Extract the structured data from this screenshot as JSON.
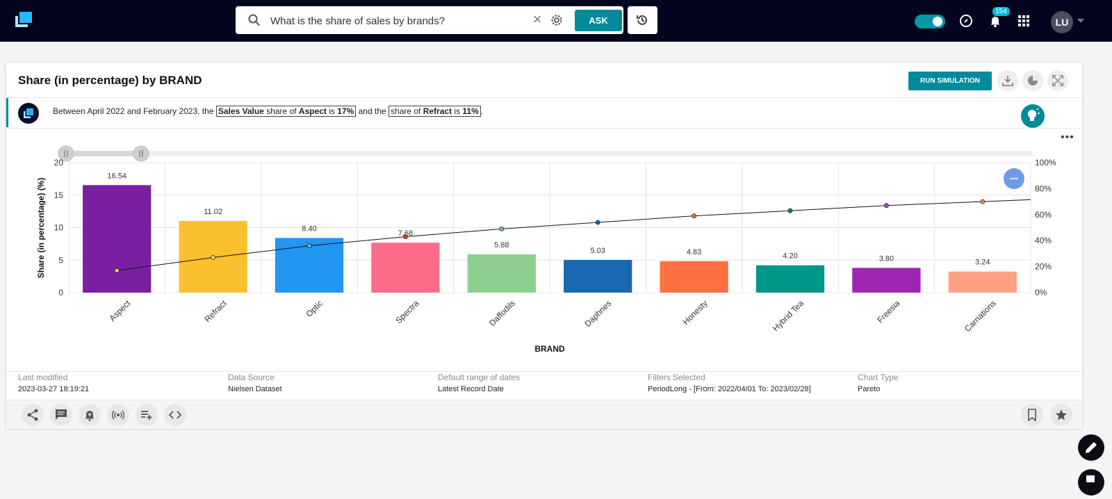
{
  "search": {
    "query": "What is the share of sales by brands?",
    "ask_label": "ASK",
    "clear_glyph": "×"
  },
  "header": {
    "notification_count": "154",
    "avatar_initials": "LU"
  },
  "card": {
    "title": "Share (in percentage) by BRAND",
    "run_simulation_label": "RUN SIMULATION",
    "insight": {
      "p1": "Between April 2022 and February 2023, the ",
      "b1_bold": "Sales Value",
      "b1_rest": " share of ",
      "b1_bold2": "Aspect",
      "b1_is": " is ",
      "b1_val": "17%",
      "p2": " and the ",
      "b2_rest": "share of ",
      "b2_bold": "Refract",
      "b2_is": " is ",
      "b2_val": "11%",
      "p3": "."
    },
    "more_glyph": "•••"
  },
  "chart_data": {
    "type": "bar",
    "title": "",
    "xlabel": "BRAND",
    "ylabel": "Share (in percentage) (%)",
    "ylim": [
      0,
      20
    ],
    "yticks": [
      "0",
      "5",
      "10",
      "15",
      "20"
    ],
    "y2lim": [
      0,
      100
    ],
    "y2ticks": [
      "0%",
      "20%",
      "40%",
      "60%",
      "80%",
      "100%"
    ],
    "categories": [
      "Aspect",
      "Refract",
      "Optic",
      "Spectra",
      "Daffodils",
      "Daphnes",
      "Honesty",
      "Hybrid Tea",
      "Freesia",
      "Carnations"
    ],
    "values": [
      16.54,
      11.02,
      8.4,
      7.68,
      5.88,
      5.03,
      4.83,
      4.2,
      3.8,
      3.24
    ],
    "value_labels": [
      "16.54",
      "11.02",
      "8.40",
      "7.68",
      "5.88",
      "5.03",
      "4.83",
      "4.20",
      "3.80",
      "3.24"
    ],
    "cumulative_pct": [
      17,
      27,
      36,
      43,
      49,
      54,
      59,
      63,
      67,
      70
    ],
    "colors": [
      "#7b1fa2",
      "#fbc02d",
      "#2196f3",
      "#ff6b8b",
      "#8ccf8e",
      "#1a68b0",
      "#ff7043",
      "#009688",
      "#9c27b0",
      "#ffa284"
    ],
    "line_marker_colors": [
      "#ffd54f",
      "#ffd54f",
      "#64b5f6",
      "#e53935",
      "#81c784",
      "#1565c0",
      "#ff7043",
      "#00897b",
      "#ab47bc",
      "#ff8a65"
    ],
    "grid": true
  },
  "meta": [
    {
      "label": "Last modified",
      "value": "2023-03-27 18:19:21"
    },
    {
      "label": "Data Source",
      "value": "Nielsen Dataset"
    },
    {
      "label": "Default range of dates",
      "value": "Latest Record Date"
    },
    {
      "label": "Filters Selected",
      "value": "PeriodLong - [From: 2022/04/01 To: 2023/02/28]"
    },
    {
      "label": "Chart Type",
      "value": "Pareto"
    }
  ],
  "colors": {
    "topbar": "#03051e",
    "accent": "#008a9a"
  }
}
